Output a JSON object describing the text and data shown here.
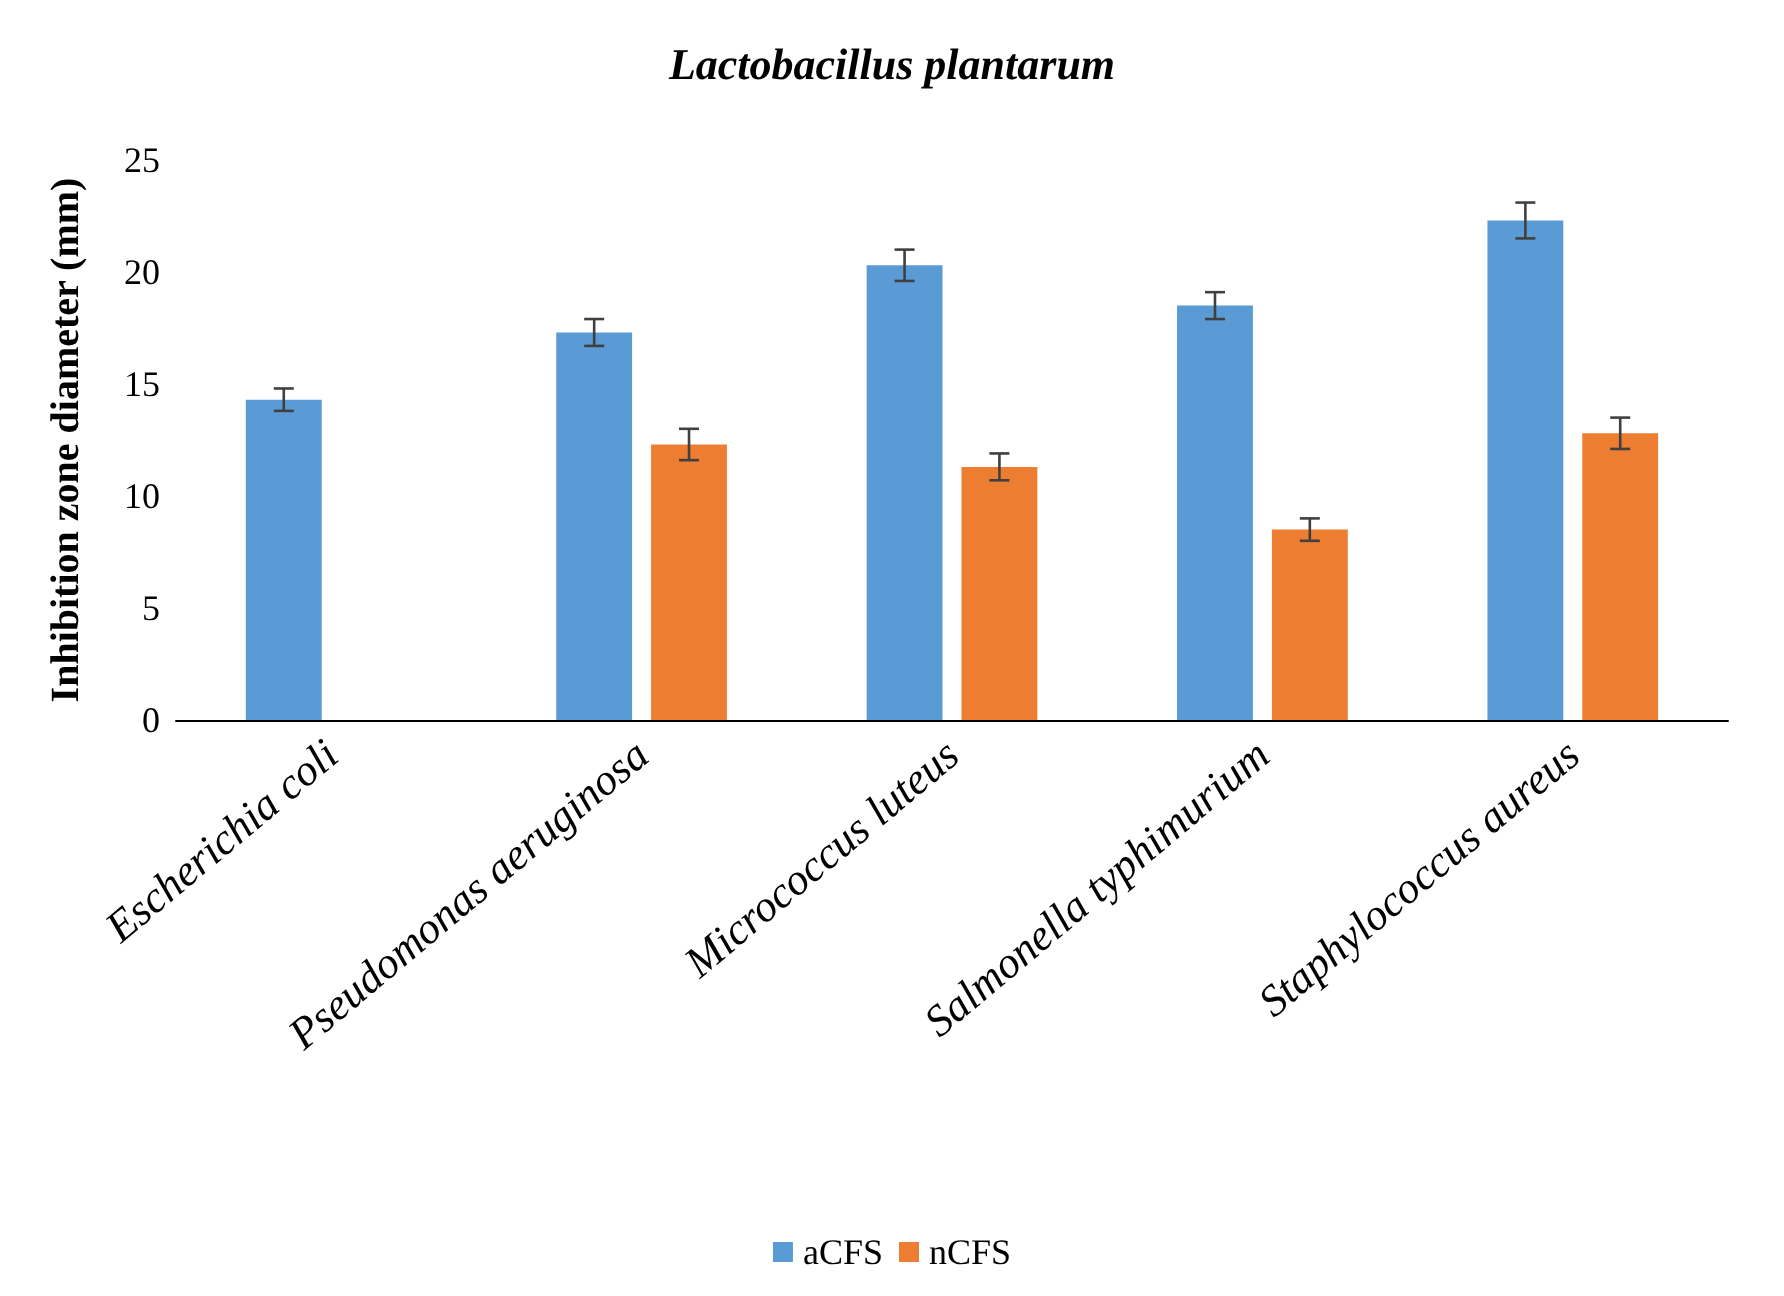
{
  "chart_data": {
    "type": "bar",
    "title": "Lactobacillus plantarum",
    "ylabel": "Inhibition zone diameter (mm)",
    "categories": [
      "Escherichia coli",
      "Pseudomonas aeruginosa",
      "Micrococcus luteus",
      "Salmonella typhimurium",
      "Staphylococcus aureus"
    ],
    "series": [
      {
        "name": "aCFS",
        "color": "#5b9bd5",
        "values": [
          14.3,
          17.3,
          20.3,
          18.5,
          22.3
        ],
        "errors": [
          0.5,
          0.6,
          0.7,
          0.6,
          0.8
        ]
      },
      {
        "name": "nCFS",
        "color": "#ed7d31",
        "values": [
          0,
          12.3,
          11.3,
          8.5,
          12.8
        ],
        "errors": [
          null,
          0.7,
          0.6,
          0.5,
          0.7
        ]
      }
    ],
    "ylim": [
      0,
      25
    ],
    "yticks": [
      0,
      5,
      10,
      15,
      20,
      25
    ],
    "grid": false,
    "legend": "bottom"
  }
}
